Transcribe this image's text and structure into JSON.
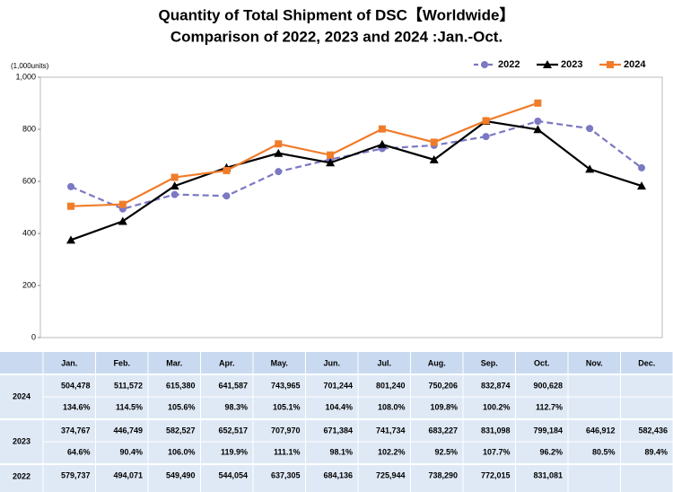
{
  "chart_data": {
    "type": "line",
    "title": [
      "Quantity of Total Shipment of DSC【Worldwide】",
      "Comparison of 2022, 2023 and 2024 :Jan.-Oct."
    ],
    "y_unit": "(1,000units)",
    "categories": [
      "Jan.",
      "Feb.",
      "Mar.",
      "Apr.",
      "May.",
      "Jun.",
      "Jul.",
      "Aug.",
      "Sep.",
      "Oct.",
      "Nov.",
      "Dec."
    ],
    "ylim": [
      0,
      1000
    ],
    "yticks": [
      0,
      200,
      400,
      600,
      800,
      {
        "value": 1000,
        "label": "1,000"
      }
    ],
    "legend": "top-right",
    "series": [
      {
        "name": "2022",
        "color": "#7b78c4",
        "dash": true,
        "marker": "circle",
        "values": [
          579.737,
          494.071,
          549.49,
          544.054,
          637.305,
          684.136,
          725.944,
          738.29,
          772.015,
          831.081,
          803,
          652
        ],
        "value_labels": [
          "579,737",
          "494,071",
          "549,490",
          "544,054",
          "637,305",
          "684,136",
          "725,944",
          "738,290",
          "772,015",
          "831,081",
          null,
          null
        ]
      },
      {
        "name": "2023",
        "color": "#000000",
        "dash": false,
        "marker": "triangle",
        "values": [
          374.767,
          446.749,
          582.527,
          652.517,
          707.97,
          671.384,
          741.734,
          683.227,
          831.098,
          799.184,
          646.912,
          582.436
        ],
        "value_labels": [
          "374,767",
          "446,749",
          "582,527",
          "652,517",
          "707,970",
          "671,384",
          "741,734",
          "683,227",
          "831,098",
          "799,184",
          "646,912",
          "582,436"
        ],
        "yoy": [
          "64.6%",
          "90.4%",
          "106.0%",
          "119.9%",
          "111.1%",
          "98.1%",
          "102.2%",
          "92.5%",
          "107.7%",
          "96.2%",
          "80.5%",
          "89.4%"
        ]
      },
      {
        "name": "2024",
        "color": "#f07c2a",
        "dash": false,
        "marker": "square",
        "values": [
          504.478,
          511.572,
          615.38,
          641.587,
          743.965,
          701.244,
          801.24,
          750.206,
          832.874,
          900.628,
          null,
          null
        ],
        "value_labels": [
          "504,478",
          "511,572",
          "615,380",
          "641,587",
          "743,965",
          "701,244",
          "801,240",
          "750,206",
          "832,874",
          "900,628",
          null,
          null
        ],
        "yoy": [
          "134.6%",
          "114.5%",
          "105.6%",
          "98.3%",
          "105.1%",
          "104.4%",
          "108.0%",
          "109.8%",
          "100.2%",
          "112.7%",
          null,
          null
        ]
      }
    ]
  }
}
